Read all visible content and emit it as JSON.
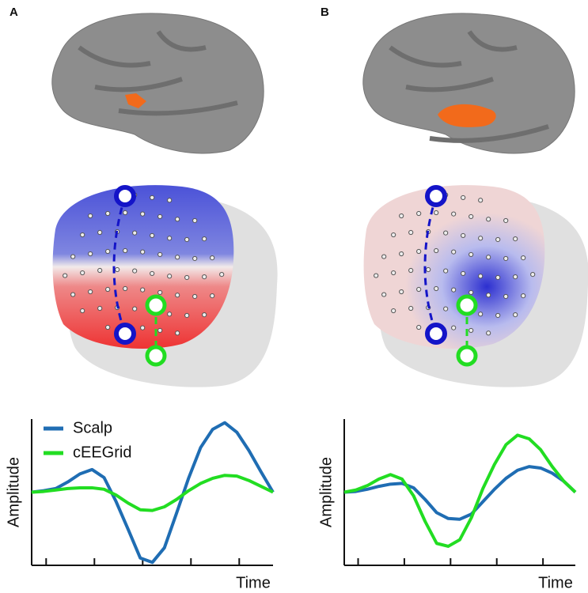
{
  "chart_data": [
    {
      "type": "line",
      "panel_label": "A",
      "y_label": "Amplitude",
      "x_label": "Time",
      "x": [
        0,
        1,
        2,
        3,
        4,
        5,
        6,
        7,
        8,
        9,
        10,
        11,
        12,
        13,
        14,
        15,
        16,
        17,
        18,
        19,
        20
      ],
      "xlim": [
        0,
        20
      ],
      "ylim": [
        -10,
        10
      ],
      "xticks": [
        1.2,
        5.2,
        9.2,
        13.2,
        17.2
      ],
      "legend": "upper left",
      "series": [
        {
          "name": "Scalp",
          "color": "#1f6db3",
          "values": [
            0,
            0.2,
            0.5,
            1.4,
            2.5,
            3.1,
            2.0,
            -1.3,
            -5.1,
            -9.0,
            -9.6,
            -7.6,
            -2.9,
            1.9,
            6.1,
            8.6,
            9.5,
            8.2,
            5.7,
            2.8,
            0
          ]
        },
        {
          "name": "cEEGrid",
          "color": "#22dd22",
          "values": [
            0,
            0.1,
            0.3,
            0.5,
            0.6,
            0.6,
            0.4,
            -0.4,
            -1.5,
            -2.4,
            -2.5,
            -2.0,
            -1.0,
            0.2,
            1.2,
            1.9,
            2.3,
            2.2,
            1.6,
            0.8,
            0
          ]
        }
      ]
    },
    {
      "type": "line",
      "panel_label": "B",
      "y_label": "Amplitude",
      "x_label": "Time",
      "x": [
        0,
        1,
        2,
        3,
        4,
        5,
        6,
        7,
        8,
        9,
        10,
        11,
        12,
        13,
        14,
        15,
        16,
        17,
        18,
        19,
        20
      ],
      "xlim": [
        0,
        20
      ],
      "ylim": [
        -10,
        10
      ],
      "xticks": [
        1.2,
        5.2,
        9.2,
        13.2,
        17.2
      ],
      "series": [
        {
          "color": "#1f6db3",
          "values": [
            0,
            0.1,
            0.4,
            0.8,
            1.1,
            1.2,
            0.6,
            -1.0,
            -2.8,
            -3.6,
            -3.7,
            -3.0,
            -1.3,
            0.4,
            1.9,
            3.0,
            3.5,
            3.3,
            2.6,
            1.5,
            0
          ]
        },
        {
          "color": "#22dd22",
          "values": [
            0,
            0.3,
            0.9,
            1.8,
            2.4,
            1.8,
            -0.5,
            -4.0,
            -7.0,
            -7.4,
            -6.5,
            -3.5,
            0.5,
            3.8,
            6.5,
            7.8,
            7.3,
            5.8,
            3.5,
            1.5,
            0
          ]
        }
      ]
    }
  ]
}
